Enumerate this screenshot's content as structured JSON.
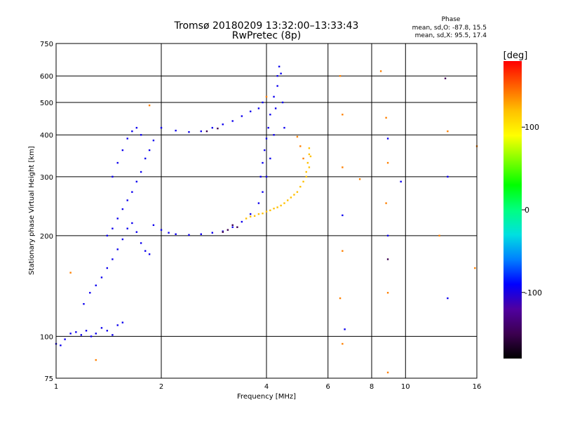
{
  "chart_data": {
    "type": "scatter",
    "title": "Tromsø 20180209 13:32:00–13:33:43",
    "subtitle": "RwPretec (8p)",
    "xlabel": "Frequency [MHz]",
    "ylabel": "Stationary phase Virtual Height [km]",
    "x_scale": "log",
    "y_scale": "log",
    "xlim": [
      1,
      16
    ],
    "ylim": [
      75,
      750
    ],
    "x_ticks": [
      1,
      2,
      4,
      6,
      8,
      10,
      16
    ],
    "y_ticks": [
      75,
      100,
      200,
      300,
      400,
      500,
      600,
      750
    ],
    "grid": true,
    "phase_info": {
      "title": "Phase",
      "line_o": "mean, sd,O: -87.8, 15.5",
      "line_x": "mean, sd,X:  95.5, 17.4"
    },
    "colorbar": {
      "label": "[deg]",
      "range": [
        -180,
        180
      ],
      "ticks": [
        100,
        0,
        -100
      ],
      "colors": [
        "#000000",
        "#3c0050",
        "#5000a0",
        "#0000ff",
        "#0080ff",
        "#00e0e0",
        "#00ff80",
        "#00ff00",
        "#80ff00",
        "#ffff00",
        "#ffc000",
        "#ff6000",
        "#ff0000"
      ]
    },
    "series": [
      {
        "phase_deg": -95,
        "points": [
          [
            1.0,
            95
          ],
          [
            1.03,
            94
          ],
          [
            1.06,
            98
          ],
          [
            1.1,
            102
          ],
          [
            1.14,
            103
          ],
          [
            1.18,
            101
          ],
          [
            1.22,
            104
          ],
          [
            1.26,
            100
          ],
          [
            1.3,
            102
          ],
          [
            1.35,
            106
          ],
          [
            1.4,
            104
          ],
          [
            1.45,
            101
          ],
          [
            1.5,
            108
          ],
          [
            1.55,
            110
          ],
          [
            1.2,
            125
          ],
          [
            1.25,
            135
          ],
          [
            1.3,
            142
          ],
          [
            1.35,
            150
          ],
          [
            1.4,
            160
          ],
          [
            1.45,
            170
          ],
          [
            1.5,
            182
          ],
          [
            1.55,
            195
          ],
          [
            1.6,
            210
          ],
          [
            1.65,
            218
          ],
          [
            1.7,
            205
          ],
          [
            1.75,
            190
          ],
          [
            1.8,
            180
          ],
          [
            1.85,
            176
          ],
          [
            1.4,
            200
          ],
          [
            1.45,
            210
          ],
          [
            1.5,
            225
          ],
          [
            1.55,
            240
          ],
          [
            1.6,
            255
          ],
          [
            1.65,
            270
          ],
          [
            1.7,
            290
          ],
          [
            1.75,
            310
          ],
          [
            1.8,
            340
          ],
          [
            1.85,
            360
          ],
          [
            1.9,
            385
          ],
          [
            1.45,
            300
          ],
          [
            1.5,
            330
          ],
          [
            1.55,
            360
          ],
          [
            1.6,
            390
          ],
          [
            1.65,
            410
          ],
          [
            1.7,
            420
          ],
          [
            1.75,
            400
          ],
          [
            1.9,
            215
          ],
          [
            2.0,
            208
          ],
          [
            2.1,
            204
          ],
          [
            2.2,
            202
          ],
          [
            2.4,
            201
          ],
          [
            2.6,
            202
          ],
          [
            2.8,
            204
          ],
          [
            3.0,
            206
          ],
          [
            3.2,
            212
          ],
          [
            3.4,
            220
          ],
          [
            3.6,
            232
          ],
          [
            3.8,
            250
          ],
          [
            3.9,
            270
          ],
          [
            4.0,
            300
          ],
          [
            4.1,
            340
          ],
          [
            4.2,
            400
          ],
          [
            4.25,
            480
          ],
          [
            4.3,
            560
          ],
          [
            4.35,
            640
          ],
          [
            3.85,
            300
          ],
          [
            3.9,
            330
          ],
          [
            3.95,
            360
          ],
          [
            4.0,
            390
          ],
          [
            4.05,
            420
          ],
          [
            4.1,
            460
          ],
          [
            4.2,
            520
          ],
          [
            4.3,
            600
          ],
          [
            4.4,
            610
          ],
          [
            4.45,
            500
          ],
          [
            4.5,
            420
          ],
          [
            2.0,
            420
          ],
          [
            2.2,
            412
          ],
          [
            2.4,
            408
          ],
          [
            2.6,
            410
          ],
          [
            2.8,
            420
          ],
          [
            3.0,
            430
          ],
          [
            3.2,
            440
          ],
          [
            3.4,
            455
          ],
          [
            3.6,
            470
          ],
          [
            3.8,
            480
          ],
          [
            3.9,
            500
          ],
          [
            6.6,
            230
          ],
          [
            6.7,
            105
          ],
          [
            8.9,
            390
          ],
          [
            8.9,
            200
          ],
          [
            9.7,
            290
          ],
          [
            13.2,
            300
          ],
          [
            13.2,
            130
          ]
        ]
      },
      {
        "phase_deg": 120,
        "points": [
          [
            3.6,
            228
          ],
          [
            3.8,
            232
          ],
          [
            4.0,
            236
          ],
          [
            4.2,
            241
          ],
          [
            4.4,
            246
          ],
          [
            4.6,
            255
          ],
          [
            4.8,
            265
          ],
          [
            5.0,
            280
          ],
          [
            5.2,
            300
          ],
          [
            5.3,
            320
          ],
          [
            5.35,
            345
          ],
          [
            5.3,
            365
          ],
          [
            3.5,
            225
          ],
          [
            3.7,
            229
          ],
          [
            3.9,
            233
          ],
          [
            4.1,
            238
          ],
          [
            4.3,
            243
          ],
          [
            4.5,
            250
          ],
          [
            4.7,
            260
          ],
          [
            4.9,
            270
          ],
          [
            5.1,
            290
          ],
          [
            5.2,
            310
          ],
          [
            5.25,
            330
          ],
          [
            5.3,
            350
          ]
        ]
      },
      {
        "phase_deg": 140,
        "points": [
          [
            4.9,
            395
          ],
          [
            5.0,
            370
          ],
          [
            5.1,
            340
          ],
          [
            4.0,
            520
          ],
          [
            1.85,
            490
          ],
          [
            1.3,
            85
          ],
          [
            6.5,
            600
          ],
          [
            6.6,
            460
          ],
          [
            6.6,
            320
          ],
          [
            6.6,
            180
          ],
          [
            6.5,
            130
          ],
          [
            6.6,
            95
          ],
          [
            8.5,
            620
          ],
          [
            8.8,
            450
          ],
          [
            8.9,
            330
          ],
          [
            8.8,
            250
          ],
          [
            8.9,
            135
          ],
          [
            8.9,
            78
          ],
          [
            13.2,
            410
          ],
          [
            16.0,
            370
          ],
          [
            15.8,
            160
          ],
          [
            12.5,
            200
          ],
          [
            7.4,
            295
          ],
          [
            1.1,
            155
          ]
        ]
      },
      {
        "phase_deg": -150,
        "points": [
          [
            3.0,
            205
          ],
          [
            3.1,
            208
          ],
          [
            3.2,
            215
          ],
          [
            3.3,
            212
          ],
          [
            2.9,
            418
          ],
          [
            2.7,
            410
          ],
          [
            8.9,
            170
          ],
          [
            13.0,
            590
          ]
        ]
      }
    ]
  }
}
